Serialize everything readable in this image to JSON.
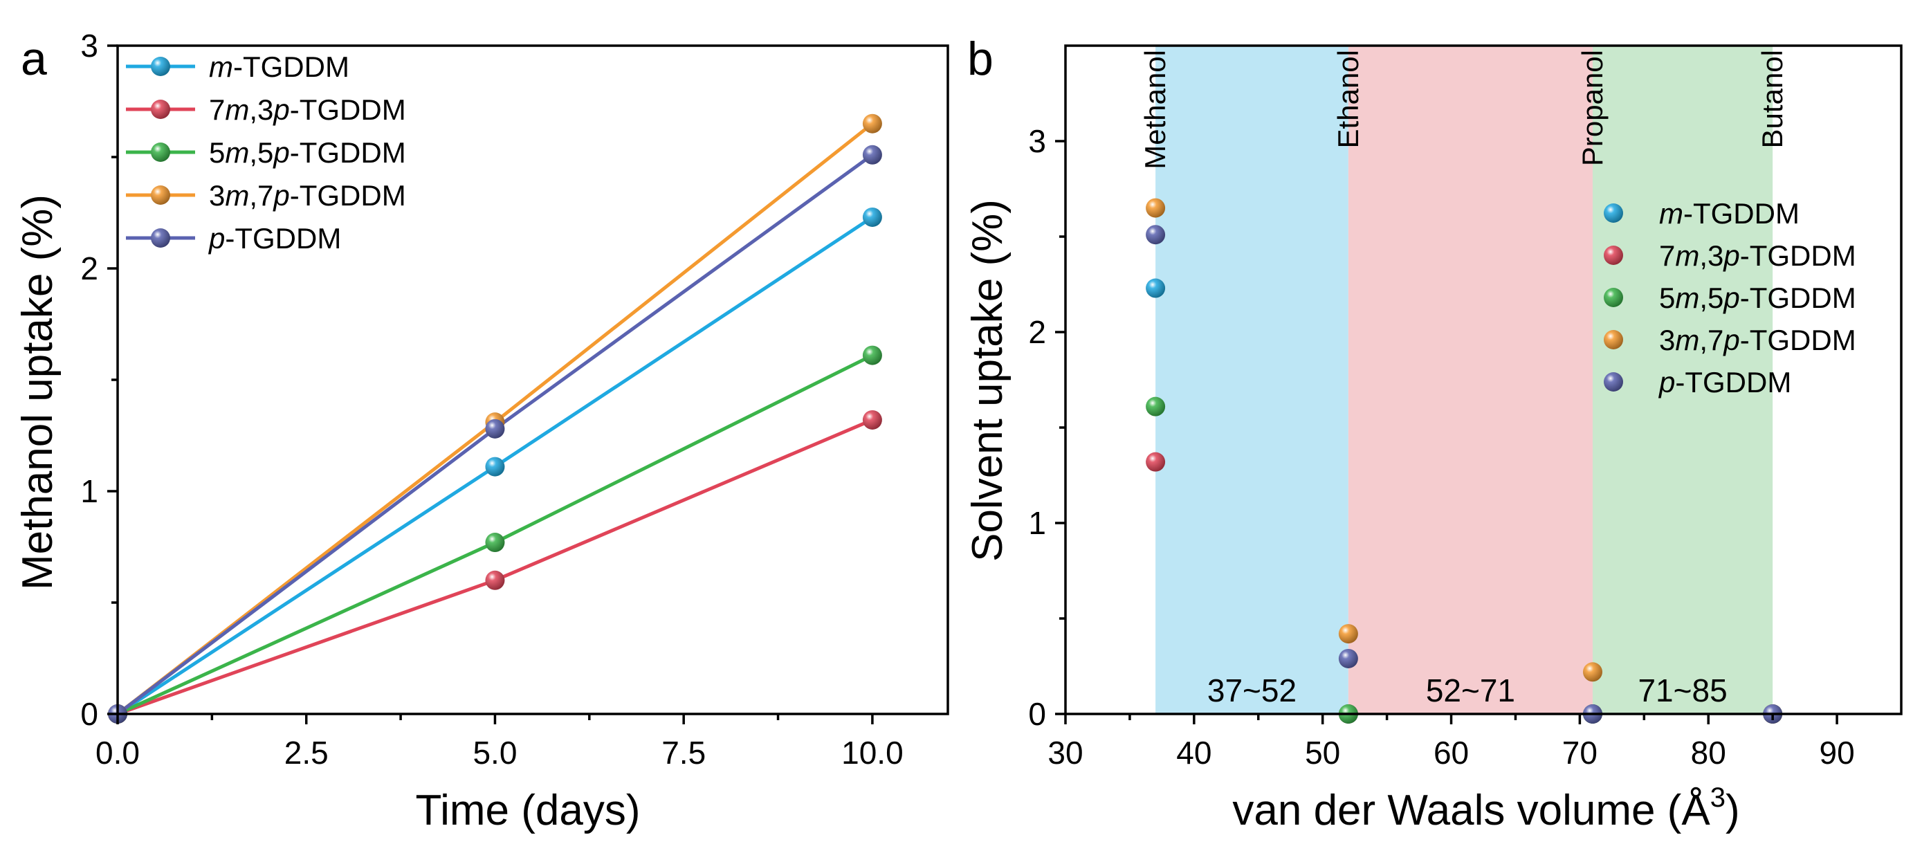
{
  "chart_data": [
    {
      "panel": "a",
      "type": "line",
      "xlabel": "Time (days)",
      "ylabel": "Methanol uptake (%)",
      "xlim": [
        0,
        11.0
      ],
      "ylim": [
        0,
        3
      ],
      "xticks": [
        0,
        2.5,
        5,
        7.5,
        10
      ],
      "xtick_labels": [
        "0.0",
        "2.5",
        "5.0",
        "7.5",
        "10.0"
      ],
      "yticks": [
        0,
        1,
        2,
        3
      ],
      "ytick_labels": [
        "0",
        "1",
        "2",
        "3"
      ],
      "legend_position": "top-left",
      "x": [
        0,
        5,
        10
      ],
      "series": [
        {
          "name": "m-TGDDM",
          "prefix": "",
          "italic1": "m",
          "mid": "",
          "italic2": "",
          "suffix": "-TGDDM",
          "color": "#1fa9e1",
          "values": [
            0,
            1.11,
            2.23
          ]
        },
        {
          "name": "7m,3p-TGDDM",
          "prefix": "7",
          "italic1": "m",
          "mid": ",3",
          "italic2": "p",
          "suffix": "-TGDDM",
          "color": "#e04458",
          "values": [
            0,
            0.6,
            1.32
          ]
        },
        {
          "name": "5m,5p-TGDDM",
          "prefix": "5",
          "italic1": "m",
          "mid": ",5",
          "italic2": "p",
          "suffix": "-TGDDM",
          "color": "#3bb44a",
          "values": [
            0,
            0.77,
            1.61
          ]
        },
        {
          "name": "3m,7p-TGDDM",
          "prefix": "3",
          "italic1": "m",
          "mid": ",7",
          "italic2": "p",
          "suffix": "-TGDDM",
          "color": "#f49a30",
          "values": [
            0,
            1.31,
            2.65
          ]
        },
        {
          "name": "p-TGDDM",
          "prefix": "",
          "italic1": "p",
          "mid": "",
          "italic2": "",
          "suffix": "-TGDDM",
          "color": "#5a62b0",
          "values": [
            0,
            1.28,
            2.51
          ]
        }
      ]
    },
    {
      "panel": "b",
      "type": "scatter",
      "xlabel_main": "van der Waals volume (Å",
      "xlabel_sup": "3",
      "xlabel_close": ")",
      "ylabel": "Solvent uptake (%)",
      "xlim": [
        30,
        95
      ],
      "ylim": [
        0,
        3.5
      ],
      "xticks": [
        30,
        40,
        50,
        60,
        70,
        80,
        90
      ],
      "xtick_labels": [
        "30",
        "40",
        "50",
        "60",
        "70",
        "80",
        "90"
      ],
      "yticks": [
        0,
        1,
        2,
        3
      ],
      "ytick_labels": [
        "0",
        "1",
        "2",
        "3"
      ],
      "legend_position": "right",
      "bands": [
        {
          "label": "37~52",
          "from": 37,
          "to": 52,
          "color": "#bde6f5"
        },
        {
          "label": "52~71",
          "from": 52,
          "to": 71,
          "color": "#f5cccf"
        },
        {
          "label": "71~85",
          "from": 71,
          "to": 85,
          "color": "#c9e8cd"
        }
      ],
      "solvents": [
        {
          "label": "Methanol",
          "x": 37
        },
        {
          "label": "Ethanol",
          "x": 52
        },
        {
          "label": "Propanol",
          "x": 71
        },
        {
          "label": "Butanol",
          "x": 85
        }
      ],
      "x": [
        37,
        52,
        71,
        85
      ],
      "series": [
        {
          "name": "m-TGDDM",
          "prefix": "",
          "italic1": "m",
          "mid": "",
          "italic2": "",
          "suffix": "-TGDDM",
          "color": "#1fa9e1",
          "values": [
            2.23,
            0,
            0,
            0
          ]
        },
        {
          "name": "7m,3p-TGDDM",
          "prefix": "7",
          "italic1": "m",
          "mid": ",3",
          "italic2": "p",
          "suffix": "-TGDDM",
          "color": "#e04458",
          "values": [
            1.32,
            0,
            0,
            0
          ]
        },
        {
          "name": "5m,5p-TGDDM",
          "prefix": "5",
          "italic1": "m",
          "mid": ",5",
          "italic2": "p",
          "suffix": "-TGDDM",
          "color": "#3bb44a",
          "values": [
            1.61,
            0,
            0,
            0
          ]
        },
        {
          "name": "3m,7p-TGDDM",
          "prefix": "3",
          "italic1": "m",
          "mid": ",7",
          "italic2": "p",
          "suffix": "-TGDDM",
          "color": "#f49a30",
          "values": [
            2.65,
            0.42,
            0.22,
            0
          ]
        },
        {
          "name": "p-TGDDM",
          "prefix": "",
          "italic1": "p",
          "mid": "",
          "italic2": "",
          "suffix": "-TGDDM",
          "color": "#5a62b0",
          "values": [
            2.51,
            0.29,
            0,
            0
          ]
        }
      ]
    }
  ]
}
